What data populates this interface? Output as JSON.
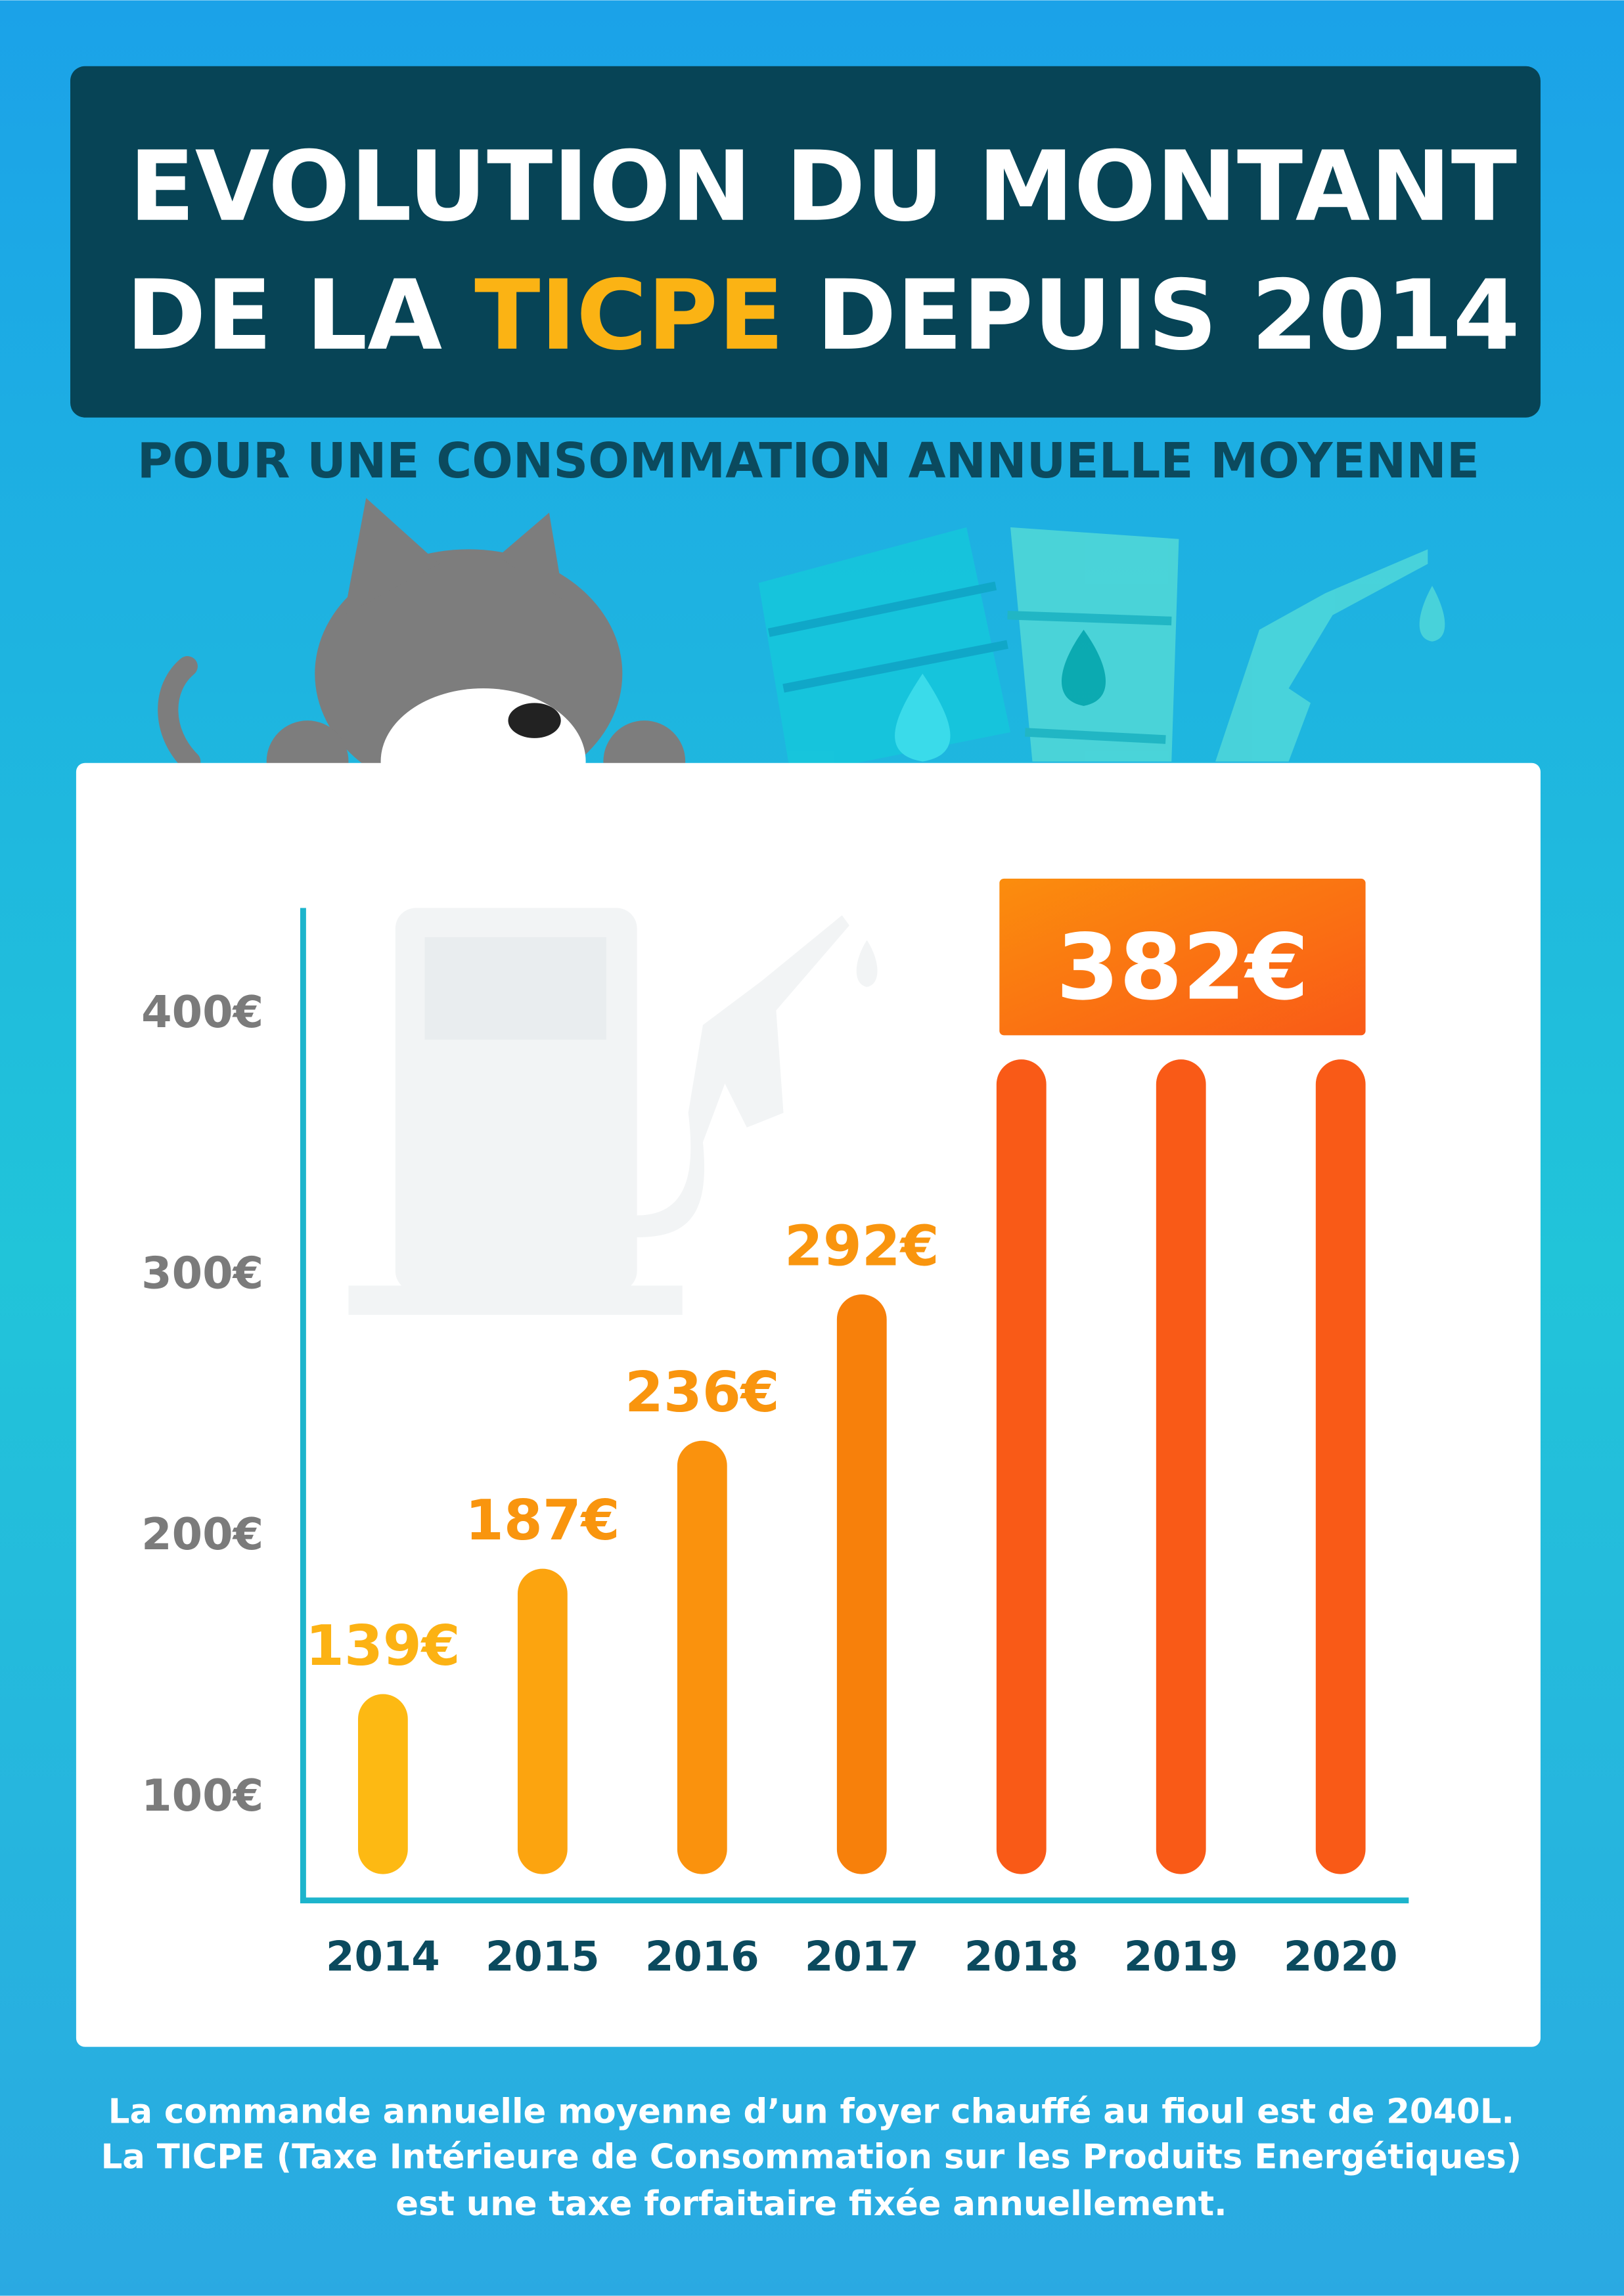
{
  "chart_data": {
    "type": "bar",
    "title": [
      "EVOLUTION DU MONTANT",
      "DE LA",
      "TICPE",
      "DEPUIS 2014"
    ],
    "subtitle": "POUR UNE CONSOMMATION ANNUELLE MOYENNE",
    "categories": [
      "2014",
      "2015",
      "2016",
      "2017",
      "2018",
      "2019",
      "2020"
    ],
    "values": [
      139,
      187,
      236,
      292,
      382,
      382,
      382
    ],
    "value_labels": [
      "139€",
      "187€",
      "236€",
      "292€",
      "382€",
      null,
      null
    ],
    "colors": [
      "#fdb913",
      "#fca40f",
      "#fa920d",
      "#f7800b",
      "#f95a17",
      "#f95a17",
      "#f95a17"
    ],
    "ylim": [
      60,
      440
    ],
    "yticks": [
      {
        "value": 100,
        "label": "100€"
      },
      {
        "value": 200,
        "label": "200€"
      },
      {
        "value": 300,
        "label": "300€"
      },
      {
        "value": 400,
        "label": "400€"
      }
    ],
    "grid": false,
    "footnote": [
      "La commande annuelle moyenne d’un foyer chauffé au fioul est de 2040L.",
      "La TICPE (Taxe Intérieure de Consommation sur les Produits Energétiques)",
      "est une taxe forfaitaire fixée annuellement."
    ]
  }
}
